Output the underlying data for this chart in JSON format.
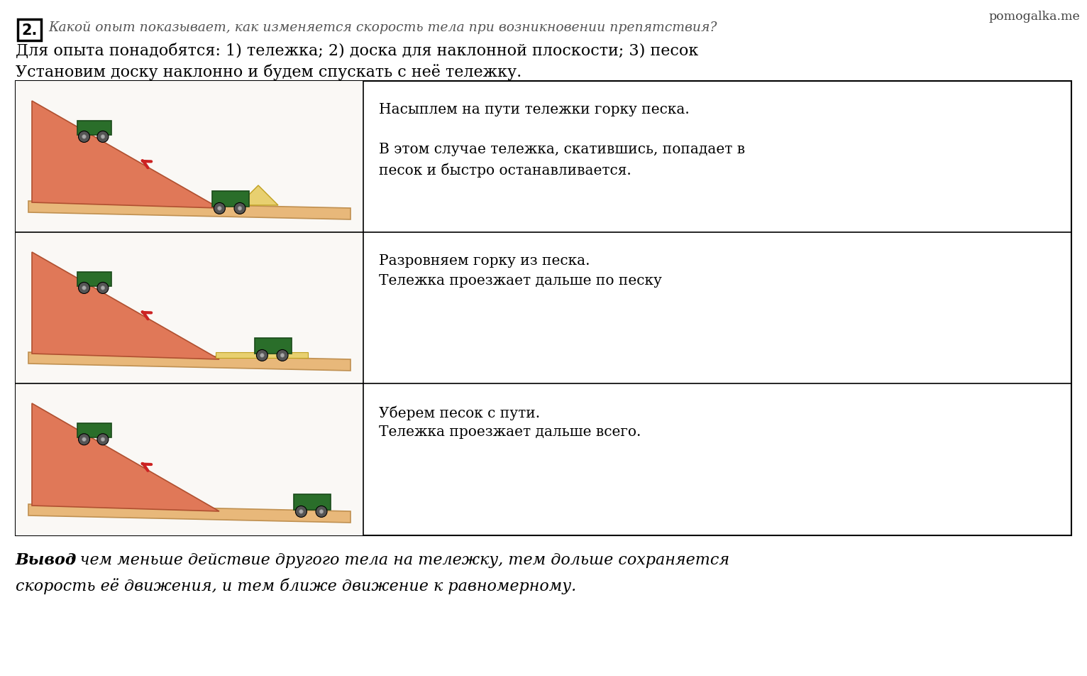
{
  "watermark": "pomogalka.me",
  "question_number": "2.",
  "question_text": "Какой опыт показывает, как изменяется скорость тела при возникновении препятствия?",
  "line1": "Для опыта понадобятся: 1) тележка; 2) доска для наклонной плоскости; 3) песок",
  "line2": "Установим доску наклонно и будем спускать с неё тележку.",
  "row0_lines": [
    "Насыплем на пути тележки горку песка.",
    "",
    "В этом случае тележка, скатившись, попадает в",
    "песок и быстро останавливается."
  ],
  "row1_lines": [
    "Разровняем горку из песка.",
    "Тележка проезжает дальше по песку"
  ],
  "row2_lines": [
    "Уберем песок с пути.",
    "Тележка проезжает дальше всего."
  ],
  "conclusion_bold": "Вывод",
  "conclusion_rest_line1": ": чем меньше действие другого тела на тележку, тем дольше сохраняется",
  "conclusion_line2": "скорость её движения, и тем ближе движение к равномерному.",
  "bg_color": "#ffffff",
  "text_color": "#000000",
  "watermark_color": "#444444",
  "ramp_color": "#e07858",
  "board_color": "#e8b87a",
  "board_edge_color": "#c09050",
  "ramp_edge_color": "#b05030",
  "sand_color": "#e8d070",
  "cart_color": "#2a6e2a",
  "cart_edge_color": "#1a4a1a",
  "wheel_color": "#555555",
  "arrow_color": "#cc2222",
  "cell_bg": "#faf8f5"
}
